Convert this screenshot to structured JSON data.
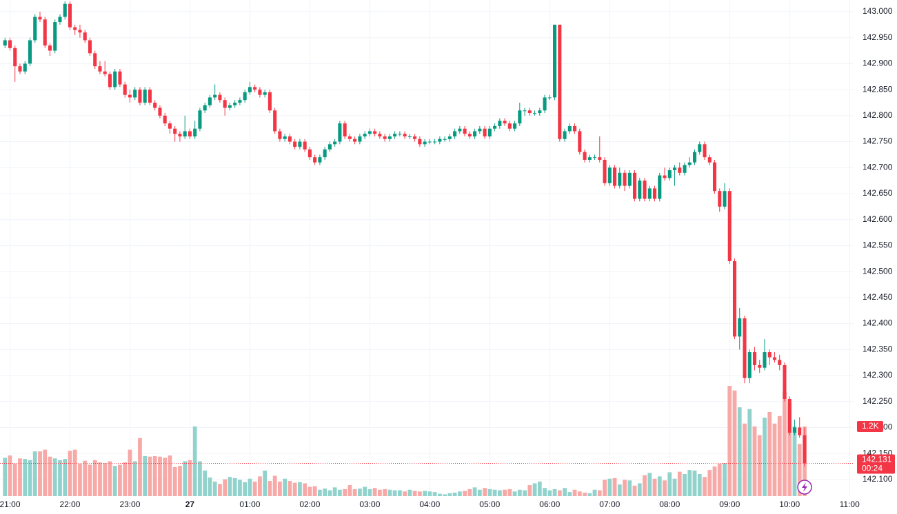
{
  "chart_data": {
    "type": "candlestick",
    "x": [
      "20:55",
      "21:00",
      "21:05",
      "21:10",
      "21:15",
      "21:20",
      "21:25",
      "21:30",
      "21:35",
      "21:40",
      "21:45",
      "21:50",
      "21:55",
      "22:00",
      "22:05",
      "22:10",
      "22:15",
      "22:20",
      "22:25",
      "22:30",
      "22:35",
      "22:40",
      "22:45",
      "22:50",
      "22:55",
      "23:00",
      "23:05",
      "23:10",
      "23:15",
      "23:20",
      "23:25",
      "23:30",
      "23:35",
      "23:40",
      "23:45",
      "23:50",
      "23:55",
      "00:00",
      "00:05",
      "00:10",
      "00:15",
      "00:20",
      "00:25",
      "00:30",
      "00:35",
      "00:40",
      "00:45",
      "00:50",
      "00:55",
      "01:00",
      "01:05",
      "01:10",
      "01:15",
      "01:20",
      "01:25",
      "01:30",
      "01:35",
      "01:40",
      "01:45",
      "01:50",
      "01:55",
      "02:00",
      "02:05",
      "02:10",
      "02:15",
      "02:20",
      "02:25",
      "02:30",
      "02:35",
      "02:40",
      "02:45",
      "02:50",
      "02:55",
      "03:00",
      "03:05",
      "03:10",
      "03:15",
      "03:20",
      "03:25",
      "03:30",
      "03:35",
      "03:40",
      "03:45",
      "03:50",
      "03:55",
      "04:00",
      "04:05",
      "04:10",
      "04:15",
      "04:20",
      "04:25",
      "04:30",
      "04:35",
      "04:40",
      "04:45",
      "04:50",
      "04:55",
      "05:00",
      "05:05",
      "05:10",
      "05:15",
      "05:20",
      "05:25",
      "05:30",
      "05:35",
      "05:40",
      "05:45",
      "05:50",
      "05:55",
      "06:00",
      "06:05",
      "06:10",
      "06:15",
      "06:20",
      "06:25",
      "06:30",
      "06:35",
      "06:40",
      "06:45",
      "06:50",
      "06:55",
      "07:00",
      "07:05",
      "07:10",
      "07:15",
      "07:20",
      "07:25",
      "07:30",
      "07:35",
      "07:40",
      "07:45",
      "07:50",
      "07:55",
      "08:00",
      "08:05",
      "08:10",
      "08:15",
      "08:20",
      "08:25",
      "08:30",
      "08:35",
      "08:40",
      "08:45",
      "08:50",
      "08:55",
      "09:00",
      "09:05",
      "09:10",
      "09:15",
      "09:20",
      "09:25",
      "09:30",
      "09:35",
      "09:40",
      "09:45",
      "09:50",
      "09:55",
      "10:00",
      "10:05",
      "10:10",
      "10:15"
    ],
    "open": [
      142.935,
      142.945,
      142.93,
      142.895,
      142.885,
      142.9,
      142.945,
      142.99,
      142.985,
      142.935,
      142.925,
      142.98,
      142.99,
      143.015,
      142.97,
      142.965,
      142.96,
      142.945,
      142.92,
      142.895,
      142.885,
      142.88,
      142.855,
      142.885,
      142.86,
      142.84,
      142.835,
      142.85,
      142.825,
      142.85,
      142.825,
      142.815,
      142.8,
      142.785,
      142.775,
      142.765,
      142.76,
      142.77,
      142.76,
      142.775,
      142.81,
      142.82,
      142.835,
      142.84,
      142.83,
      142.815,
      142.82,
      142.825,
      142.83,
      142.845,
      142.855,
      142.85,
      142.84,
      142.845,
      142.81,
      142.77,
      142.755,
      142.76,
      142.75,
      142.74,
      142.75,
      142.735,
      142.72,
      142.71,
      142.72,
      142.735,
      142.745,
      142.75,
      142.785,
      142.76,
      142.755,
      142.75,
      142.76,
      142.765,
      142.77,
      142.765,
      142.76,
      142.755,
      142.76,
      142.765,
      142.765,
      142.76,
      142.76,
      142.755,
      142.745,
      142.75,
      142.75,
      142.75,
      142.755,
      142.755,
      142.76,
      142.77,
      142.775,
      142.765,
      142.76,
      142.77,
      142.775,
      142.76,
      142.775,
      142.78,
      142.79,
      142.785,
      142.775,
      142.785,
      142.81,
      142.81,
      142.805,
      142.805,
      142.81,
      142.835,
      142.835,
      142.975,
      142.755,
      142.77,
      142.78,
      142.77,
      142.73,
      142.715,
      142.72,
      142.72,
      142.715,
      142.67,
      142.7,
      142.665,
      142.69,
      142.665,
      142.69,
      142.64,
      142.675,
      142.64,
      142.66,
      142.64,
      142.685,
      142.68,
      142.695,
      142.7,
      142.69,
      142.705,
      142.71,
      142.73,
      142.745,
      142.72,
      142.71,
      142.655,
      142.625,
      142.655,
      142.52,
      142.375,
      142.41,
      142.295,
      142.345,
      142.32,
      142.315,
      142.345,
      142.335,
      142.33,
      142.32,
      142.255,
      142.19,
      142.2,
      142.185
    ],
    "high": [
      142.95,
      142.95,
      142.935,
      142.9,
      142.905,
      142.95,
      142.995,
      143.0,
      142.99,
      142.94,
      142.985,
      142.995,
      143.02,
      143.02,
      142.975,
      142.975,
      142.965,
      142.95,
      142.925,
      142.905,
      142.905,
      142.885,
      142.89,
      142.89,
      142.865,
      142.85,
      142.855,
      142.855,
      142.855,
      142.855,
      142.83,
      142.82,
      142.805,
      142.79,
      142.78,
      142.77,
      142.8,
      142.775,
      142.79,
      142.815,
      142.825,
      142.84,
      142.86,
      142.845,
      142.835,
      142.825,
      142.83,
      142.835,
      142.85,
      142.865,
      142.86,
      142.855,
      142.85,
      142.85,
      142.815,
      142.775,
      142.765,
      142.765,
      142.755,
      142.755,
      142.755,
      142.74,
      142.725,
      142.725,
      142.74,
      142.75,
      142.755,
      142.79,
      142.79,
      142.765,
      142.76,
      142.765,
      142.77,
      142.775,
      142.775,
      142.77,
      142.765,
      142.765,
      142.77,
      142.77,
      142.77,
      142.765,
      142.765,
      142.76,
      142.755,
      142.755,
      142.755,
      142.76,
      142.76,
      142.765,
      142.775,
      142.78,
      142.78,
      142.77,
      142.775,
      142.78,
      142.78,
      142.78,
      142.785,
      142.795,
      142.795,
      142.79,
      142.79,
      142.825,
      142.815,
      142.815,
      142.81,
      142.815,
      142.84,
      142.84,
      142.975,
      142.975,
      142.775,
      142.785,
      142.785,
      142.775,
      142.735,
      142.725,
      142.725,
      142.76,
      142.72,
      142.705,
      142.705,
      142.7,
      142.695,
      142.695,
      142.695,
      142.68,
      142.68,
      142.665,
      142.665,
      142.69,
      142.7,
      142.7,
      142.705,
      142.71,
      142.71,
      142.72,
      142.735,
      142.75,
      142.75,
      142.725,
      142.715,
      142.66,
      142.67,
      142.66,
      142.525,
      142.43,
      142.415,
      142.35,
      142.355,
      142.33,
      142.37,
      142.35,
      142.345,
      142.34,
      142.325,
      142.26,
      142.215,
      142.22,
      142.2
    ],
    "low": [
      142.93,
      142.925,
      142.865,
      142.88,
      142.88,
      142.895,
      142.94,
      142.98,
      142.93,
      142.915,
      142.92,
      142.975,
      142.985,
      142.965,
      142.955,
      142.95,
      142.94,
      142.915,
      142.89,
      142.88,
      142.875,
      142.85,
      142.85,
      142.855,
      142.835,
      142.825,
      142.83,
      142.82,
      142.82,
      142.82,
      142.81,
      142.795,
      142.78,
      142.765,
      142.75,
      142.75,
      142.755,
      142.755,
      142.755,
      142.77,
      142.805,
      142.815,
      142.83,
      142.825,
      142.8,
      142.81,
      142.815,
      142.82,
      142.825,
      142.84,
      142.845,
      142.835,
      142.835,
      142.805,
      142.765,
      142.75,
      142.75,
      142.745,
      142.735,
      142.735,
      142.73,
      142.715,
      142.705,
      142.705,
      142.715,
      142.73,
      142.74,
      142.745,
      142.755,
      142.75,
      142.745,
      142.745,
      142.755,
      142.76,
      142.76,
      142.755,
      142.75,
      142.75,
      142.755,
      142.76,
      142.755,
      142.755,
      142.75,
      142.74,
      142.74,
      142.745,
      142.745,
      142.745,
      142.75,
      142.75,
      142.755,
      142.765,
      142.76,
      142.755,
      142.755,
      142.765,
      142.755,
      142.755,
      142.77,
      142.775,
      142.78,
      142.77,
      142.77,
      142.78,
      142.8,
      142.8,
      142.8,
      142.8,
      142.805,
      142.83,
      142.83,
      142.75,
      142.75,
      142.765,
      142.765,
      142.725,
      142.71,
      142.71,
      142.715,
      142.71,
      142.665,
      142.665,
      142.66,
      142.66,
      142.655,
      142.66,
      142.635,
      142.635,
      142.635,
      142.635,
      142.635,
      142.635,
      142.675,
      142.675,
      142.665,
      142.685,
      142.685,
      142.7,
      142.705,
      142.725,
      142.715,
      142.705,
      142.65,
      142.615,
      142.62,
      142.515,
      142.37,
      142.35,
      142.285,
      142.285,
      142.31,
      142.305,
      142.31,
      142.32,
      142.325,
      142.31,
      142.25,
      142.185,
      142.185,
      142.18,
      142.125
    ],
    "close": [
      142.945,
      142.93,
      142.895,
      142.885,
      142.9,
      142.945,
      142.99,
      142.985,
      142.935,
      142.925,
      142.98,
      142.99,
      143.015,
      142.97,
      142.965,
      142.96,
      142.945,
      142.92,
      142.895,
      142.885,
      142.88,
      142.855,
      142.885,
      142.86,
      142.84,
      142.835,
      142.85,
      142.825,
      142.85,
      142.825,
      142.815,
      142.8,
      142.785,
      142.775,
      142.765,
      142.76,
      142.77,
      142.76,
      142.775,
      142.81,
      142.82,
      142.835,
      142.84,
      142.83,
      142.815,
      142.82,
      142.825,
      142.83,
      142.845,
      142.855,
      142.85,
      142.84,
      142.845,
      142.81,
      142.77,
      142.755,
      142.76,
      142.75,
      142.74,
      142.75,
      142.735,
      142.72,
      142.71,
      142.72,
      142.735,
      142.745,
      142.75,
      142.785,
      142.76,
      142.755,
      142.75,
      142.76,
      142.765,
      142.77,
      142.765,
      142.76,
      142.755,
      142.76,
      142.765,
      142.765,
      142.76,
      142.76,
      142.755,
      142.745,
      142.75,
      142.75,
      142.75,
      142.755,
      142.755,
      142.76,
      142.77,
      142.775,
      142.765,
      142.76,
      142.77,
      142.775,
      142.76,
      142.775,
      142.78,
      142.79,
      142.785,
      142.775,
      142.785,
      142.81,
      142.81,
      142.805,
      142.805,
      142.81,
      142.835,
      142.835,
      142.975,
      142.755,
      142.77,
      142.78,
      142.77,
      142.73,
      142.715,
      142.72,
      142.72,
      142.715,
      142.67,
      142.7,
      142.665,
      142.69,
      142.665,
      142.69,
      142.64,
      142.675,
      142.64,
      142.66,
      142.64,
      142.685,
      142.68,
      142.695,
      142.7,
      142.69,
      142.705,
      142.71,
      142.73,
      142.745,
      142.72,
      142.71,
      142.655,
      142.625,
      142.655,
      142.52,
      142.375,
      142.41,
      142.295,
      142.345,
      142.32,
      142.315,
      142.345,
      142.335,
      142.33,
      142.32,
      142.255,
      142.19,
      142.2,
      142.185,
      142.131
    ],
    "volume": [
      660,
      700,
      560,
      650,
      640,
      620,
      770,
      770,
      800,
      680,
      650,
      620,
      640,
      780,
      800,
      560,
      610,
      540,
      620,
      580,
      570,
      600,
      520,
      540,
      580,
      800,
      600,
      1000,
      690,
      680,
      690,
      680,
      660,
      700,
      500,
      520,
      600,
      620,
      1200,
      600,
      440,
      320,
      250,
      210,
      290,
      330,
      310,
      280,
      240,
      300,
      250,
      340,
      440,
      260,
      350,
      250,
      300,
      260,
      230,
      240,
      220,
      160,
      170,
      110,
      130,
      100,
      150,
      110,
      120,
      190,
      120,
      130,
      160,
      120,
      140,
      110,
      120,
      110,
      100,
      100,
      80,
      110,
      90,
      80,
      90,
      80,
      70,
      40,
      30,
      50,
      60,
      80,
      90,
      120,
      150,
      110,
      140,
      120,
      110,
      100,
      110,
      120,
      80,
      110,
      100,
      190,
      220,
      250,
      140,
      100,
      120,
      100,
      140,
      70,
      110,
      80,
      60,
      50,
      110,
      100,
      280,
      300,
      310,
      200,
      280,
      270,
      180,
      220,
      360,
      400,
      300,
      340,
      270,
      410,
      300,
      420,
      380,
      450,
      440,
      380,
      330,
      450,
      510,
      560,
      570,
      1900,
      1820,
      1530,
      1250,
      1500,
      1200,
      1050,
      1350,
      1450,
      1250,
      1380,
      1800,
      1600,
      1200,
      900,
      1200
    ],
    "xlim": [
      "20:50",
      "11:04"
    ],
    "xticks": [
      {
        "value": "21:00",
        "label": "21:00"
      },
      {
        "value": "22:00",
        "label": "22:00"
      },
      {
        "value": "23:00",
        "label": "23:00"
      },
      {
        "value": "00:00",
        "label": "27"
      },
      {
        "value": "01:00",
        "label": "01:00"
      },
      {
        "value": "02:00",
        "label": "02:00"
      },
      {
        "value": "03:00",
        "label": "03:00"
      },
      {
        "value": "04:00",
        "label": "04:00"
      },
      {
        "value": "05:00",
        "label": "05:00"
      },
      {
        "value": "06:00",
        "label": "06:00"
      },
      {
        "value": "07:00",
        "label": "07:00"
      },
      {
        "value": "08:00",
        "label": "08:00"
      },
      {
        "value": "09:00",
        "label": "09:00"
      },
      {
        "value": "10:00",
        "label": "10:00"
      },
      {
        "value": "11:00",
        "label": "11:00"
      }
    ],
    "ylim": [
      142.068,
      143.0225
    ],
    "yticks": [
      {
        "value": 142.1,
        "label": "142.100"
      },
      {
        "value": 142.15,
        "label": "142.150"
      },
      {
        "value": 142.2,
        "label": "142.200"
      },
      {
        "value": 142.25,
        "label": "142.250"
      },
      {
        "value": 142.3,
        "label": "142.300"
      },
      {
        "value": 142.35,
        "label": "142.350"
      },
      {
        "value": 142.4,
        "label": "142.400"
      },
      {
        "value": 142.45,
        "label": "142.450"
      },
      {
        "value": 142.5,
        "label": "142.500"
      },
      {
        "value": 142.55,
        "label": "142.550"
      },
      {
        "value": 142.6,
        "label": "142.600"
      },
      {
        "value": 142.65,
        "label": "142.650"
      },
      {
        "value": 142.7,
        "label": "142.700"
      },
      {
        "value": 142.75,
        "label": "142.750"
      },
      {
        "value": 142.8,
        "label": "142.800"
      },
      {
        "value": 142.85,
        "label": "142.850"
      },
      {
        "value": 142.9,
        "label": "142.900"
      },
      {
        "value": 142.95,
        "label": "142.950"
      },
      {
        "value": 143.0,
        "label": "143.000"
      }
    ],
    "grid": true,
    "up_color": "#089981",
    "down_color": "#f23645",
    "volume_up_color": "#92d2cc",
    "volume_down_color": "#f7a9a7",
    "last_price": 142.131,
    "countdown": "00:24",
    "volume_label": {
      "value": 1200,
      "label": "1.2K"
    }
  }
}
